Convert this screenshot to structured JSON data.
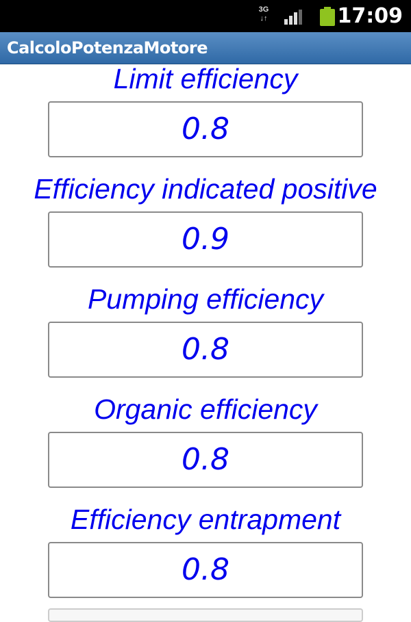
{
  "status_bar": {
    "network": "3G",
    "time": "17:09",
    "battery_color": "#8fc31f"
  },
  "app": {
    "title": "CalcoloPotenzaMotore",
    "accent": "#0000ee"
  },
  "fields": [
    {
      "label": "Limit efficiency",
      "value": "0.8"
    },
    {
      "label": "Efficiency indicated positive",
      "value": "0.9"
    },
    {
      "label": "Pumping efficiency",
      "value": "0.8"
    },
    {
      "label": "Organic efficiency",
      "value": "0.8"
    },
    {
      "label": "Efficiency entrapment",
      "value": "0.8"
    }
  ]
}
